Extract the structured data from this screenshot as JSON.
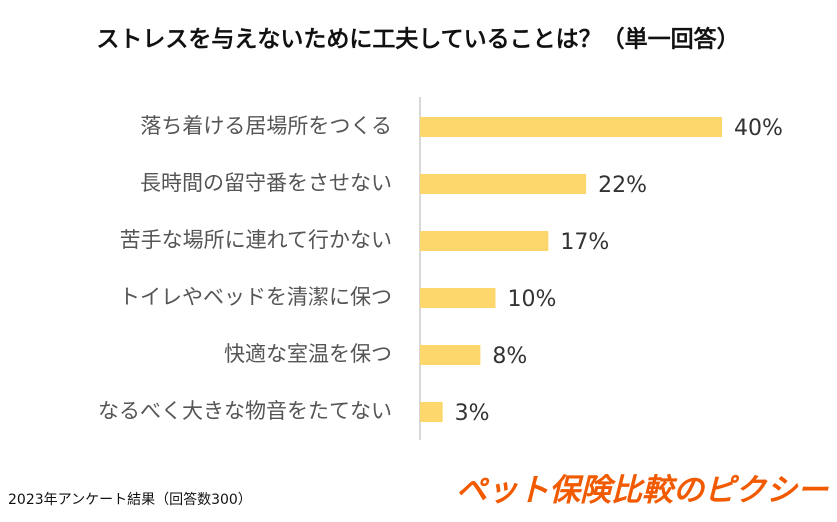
{
  "chart_data": {
    "type": "bar",
    "orientation": "horizontal",
    "title": "ストレスを与えないために工夫していることは？（単一回答）",
    "categories": [
      "落ち着ける居場所をつくる",
      "長時間の留守番をさせない",
      "苦手な場所に連れて行かない",
      "トイレやベッドを清潔に保つ",
      "快適な室温を保つ",
      "なるべく大きな物音をたてない"
    ],
    "values": [
      40,
      22,
      17,
      10,
      8,
      3
    ],
    "value_labels": [
      "40%",
      "22%",
      "17%",
      "10%",
      "8%",
      "3%"
    ],
    "color": "#fdd76b",
    "xlim": [
      0,
      40
    ]
  },
  "footer": {
    "note": "2023年アンケート結果（回答数300）",
    "brand": "ペット保険比較のピクシー"
  }
}
